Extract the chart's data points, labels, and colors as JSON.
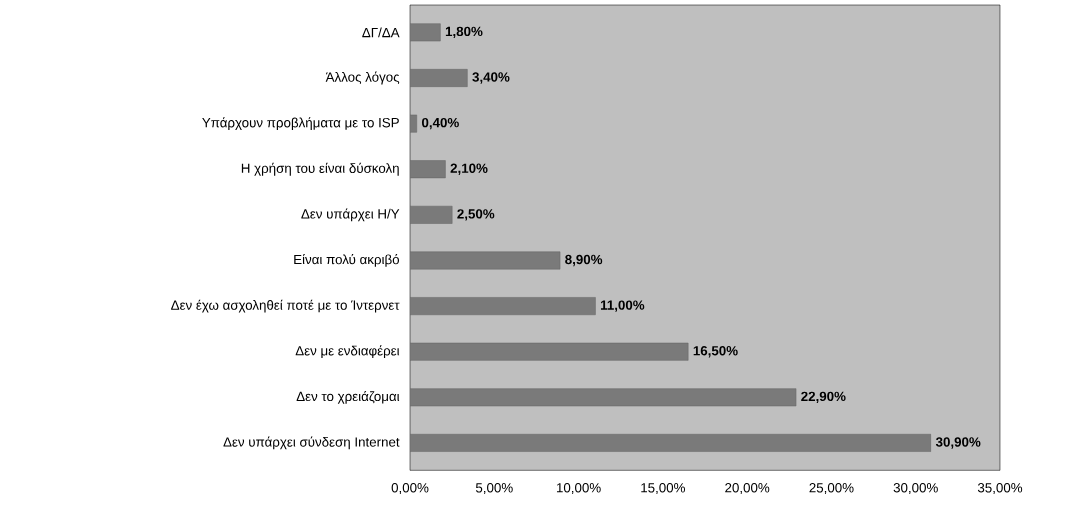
{
  "chart_data": {
    "type": "bar",
    "orientation": "horizontal",
    "categories": [
      "ΔΓ/ΔΑ",
      "Άλλος λόγος",
      "Υπάρχουν προβλήματα με το ISP",
      "Η χρήση του είναι δύσκολη",
      "Δεν υπάρχει Η/Υ",
      "Είναι πολύ ακριβό",
      "Δεν έχω ασχοληθεί ποτέ με το Ίντερνετ",
      "Δεν με ενδιαφέρει",
      "Δεν το χρειάζομαι",
      "Δεν υπάρχει σύνδεση Internet"
    ],
    "values": [
      1.8,
      3.4,
      0.4,
      2.1,
      2.5,
      8.9,
      11.0,
      16.5,
      22.9,
      30.9
    ],
    "value_labels": [
      "1,80%",
      "3,40%",
      "0,40%",
      "2,10%",
      "2,50%",
      "8,90%",
      "11,00%",
      "16,50%",
      "22,90%",
      "30,90%"
    ],
    "color": "#7a7a7a",
    "xlim": [
      0,
      35
    ],
    "xticks": [
      {
        "value": 0,
        "label": "0,00%"
      },
      {
        "value": 5,
        "label": "5,00%"
      },
      {
        "value": 10,
        "label": "10,00%"
      },
      {
        "value": 15,
        "label": "15,00%"
      },
      {
        "value": 20,
        "label": "20,00%"
      },
      {
        "value": 25,
        "label": "25,00%"
      },
      {
        "value": 30,
        "label": "30,00%"
      },
      {
        "value": 35,
        "label": "35,00%"
      }
    ],
    "ylabel": null
  }
}
